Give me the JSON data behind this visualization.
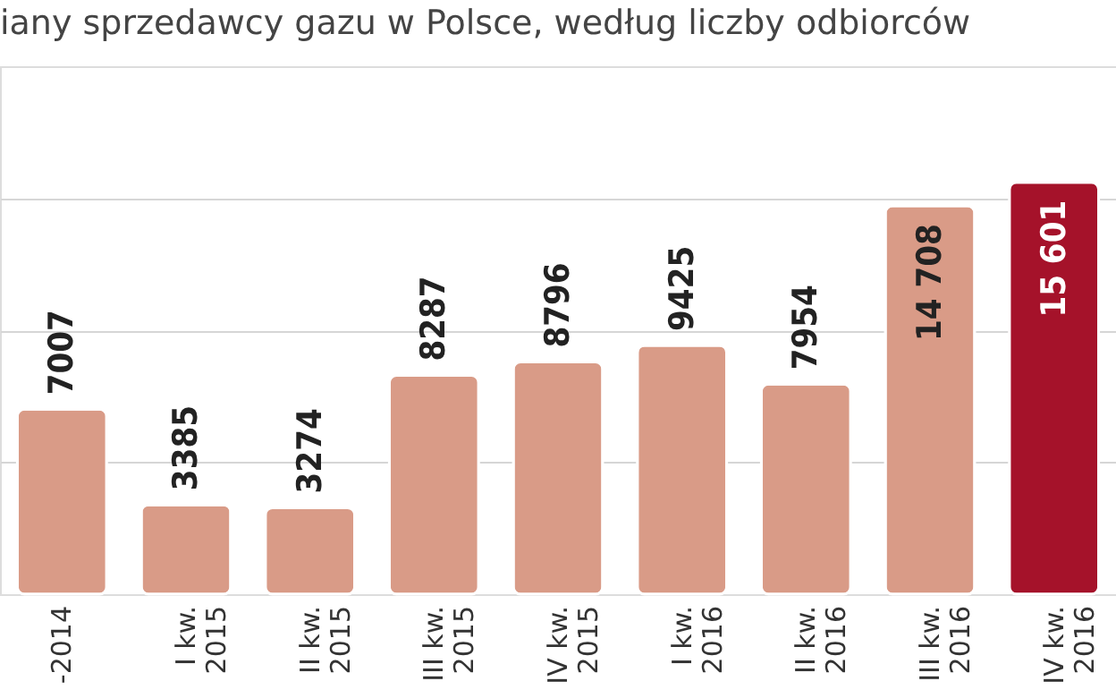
{
  "chart_data": {
    "type": "bar",
    "title": "iany sprzedawcy gazu w Polsce, według liczby odbiorców",
    "categories": [
      "-2014",
      "I kw.\n2015",
      "II kw.\n2015",
      "III kw.\n2015",
      "IV kw.\n2015",
      "I kw.\n2016",
      "II kw.\n2016",
      "III kw.\n2016",
      "IV kw.\n2016"
    ],
    "values": [
      7007,
      3385,
      3274,
      8287,
      8796,
      9425,
      7954,
      14708,
      15601
    ],
    "value_labels": [
      "7007",
      "3385",
      "3274",
      "8287",
      "8796",
      "9425",
      "7954",
      "14 708",
      "15 601"
    ],
    "colors": [
      "#d99b87",
      "#d99b87",
      "#d99b87",
      "#d99b87",
      "#d99b87",
      "#d99b87",
      "#d99b87",
      "#d99b87",
      "#a5122a"
    ],
    "ylim": [
      0,
      20000
    ],
    "yticks": [
      {
        "value": 5000,
        "label": null
      },
      {
        "value": 10000,
        "label": null
      },
      {
        "value": 15000,
        "label": null
      }
    ],
    "grid": "y",
    "tick_labels": "x"
  }
}
